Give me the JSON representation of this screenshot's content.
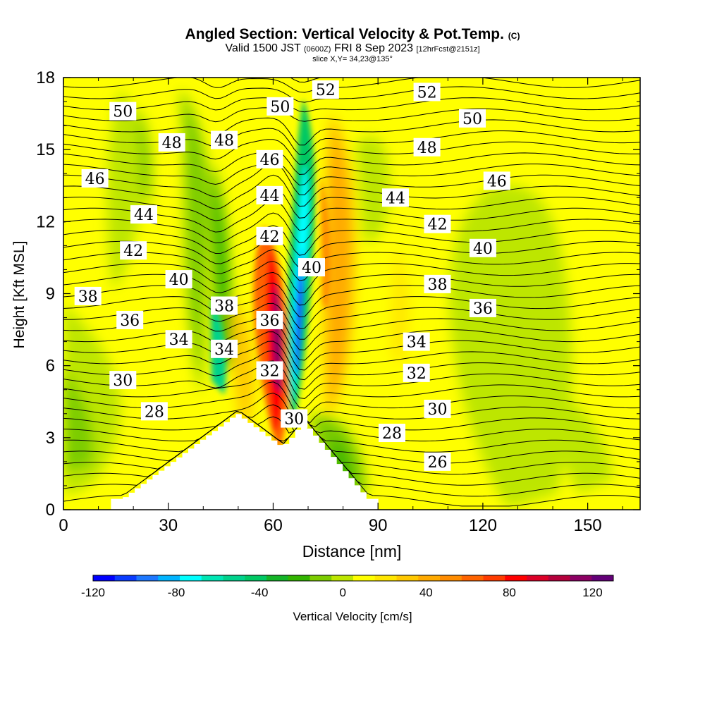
{
  "title": {
    "main": "Angled Section: Vertical Velocity & Pot.Temp.",
    "units": "(C)",
    "valid_prefix": "Valid 1500 JST",
    "valid_utc": "(0600Z)",
    "valid_date": "FRI 8 Sep 2023",
    "forecast": "[12hrFcst@2151z]",
    "slice": "slice X,Y= 34,23@135°"
  },
  "chart_data": {
    "type": "heatmap",
    "xlabel": "Distance [nm]",
    "ylabel": "Height [Kft MSL]",
    "xlim": [
      0,
      165
    ],
    "ylim": [
      0,
      18
    ],
    "x_ticks": [
      "0",
      "30",
      "60",
      "90",
      "120",
      "150"
    ],
    "y_ticks": [
      "0",
      "3",
      "6",
      "9",
      "12",
      "15",
      "18"
    ],
    "colorbar": {
      "label": "Vertical Velocity [cm/s]",
      "range": [
        -120,
        130
      ],
      "tick_labels": [
        "-120",
        "-80",
        "-40",
        "0",
        "40",
        "80",
        "120"
      ],
      "colors": [
        "#0000ff",
        "#0a3cff",
        "#1e78ff",
        "#00b4ff",
        "#00ffff",
        "#00e6b4",
        "#00d28c",
        "#00c864",
        "#14b428",
        "#32b400",
        "#7ccc00",
        "#bde600",
        "#ffff00",
        "#ffe600",
        "#ffc800",
        "#ffaa00",
        "#ff8c00",
        "#ff6400",
        "#ff3c00",
        "#ff0000",
        "#dc0028",
        "#b4003c",
        "#8c0064",
        "#640078"
      ]
    },
    "theta_labels": [
      {
        "value": "50",
        "x": 17,
        "y": 16.6
      },
      {
        "value": "48",
        "x": 31,
        "y": 15.3
      },
      {
        "value": "46",
        "x": 9,
        "y": 13.8
      },
      {
        "value": "44",
        "x": 23,
        "y": 12.3
      },
      {
        "value": "42",
        "x": 20,
        "y": 10.8
      },
      {
        "value": "40",
        "x": 33,
        "y": 9.6
      },
      {
        "value": "38",
        "x": 7,
        "y": 8.9
      },
      {
        "value": "36",
        "x": 19,
        "y": 7.9
      },
      {
        "value": "34",
        "x": 33,
        "y": 7.1
      },
      {
        "value": "30",
        "x": 17,
        "y": 5.4
      },
      {
        "value": "28",
        "x": 26,
        "y": 4.1
      },
      {
        "value": "48",
        "x": 46,
        "y": 15.4
      },
      {
        "value": "50",
        "x": 62,
        "y": 16.8
      },
      {
        "value": "52",
        "x": 75,
        "y": 17.5
      },
      {
        "value": "46",
        "x": 59,
        "y": 14.6
      },
      {
        "value": "44",
        "x": 59,
        "y": 13.1
      },
      {
        "value": "42",
        "x": 59,
        "y": 11.4
      },
      {
        "value": "38",
        "x": 46,
        "y": 8.5
      },
      {
        "value": "34",
        "x": 46,
        "y": 6.7
      },
      {
        "value": "36",
        "x": 59,
        "y": 7.9
      },
      {
        "value": "32",
        "x": 59,
        "y": 5.8
      },
      {
        "value": "40",
        "x": 71,
        "y": 10.1
      },
      {
        "value": "30",
        "x": 66,
        "y": 3.8
      },
      {
        "value": "52",
        "x": 104,
        "y": 17.4
      },
      {
        "value": "50",
        "x": 117,
        "y": 16.3
      },
      {
        "value": "48",
        "x": 104,
        "y": 15.1
      },
      {
        "value": "46",
        "x": 124,
        "y": 13.7
      },
      {
        "value": "44",
        "x": 95,
        "y": 13.0
      },
      {
        "value": "42",
        "x": 107,
        "y": 11.9
      },
      {
        "value": "40",
        "x": 120,
        "y": 10.9
      },
      {
        "value": "38",
        "x": 107,
        "y": 9.4
      },
      {
        "value": "36",
        "x": 120,
        "y": 8.4
      },
      {
        "value": "34",
        "x": 101,
        "y": 7.0
      },
      {
        "value": "32",
        "x": 101,
        "y": 5.7
      },
      {
        "value": "30",
        "x": 107,
        "y": 4.2
      },
      {
        "value": "28",
        "x": 94,
        "y": 3.2
      },
      {
        "value": "26",
        "x": 107,
        "y": 2.0
      }
    ]
  }
}
